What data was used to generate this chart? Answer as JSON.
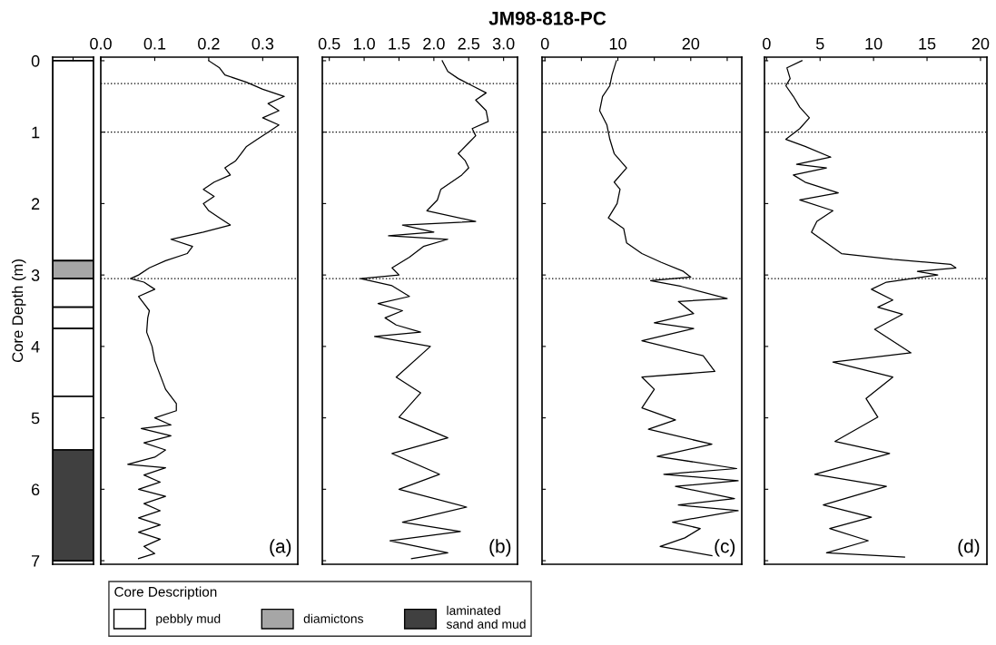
{
  "chart_data": [
    {
      "type": "bar",
      "stacked": true,
      "ylabel": "Core Depth (m)",
      "categories": [
        null
      ],
      "ylim": [
        7.05,
        -0.05
      ],
      "yticks": [
        0,
        1,
        2,
        3,
        4,
        5,
        6,
        7
      ],
      "tick_labels": "y",
      "legend": "bottom",
      "legend_title": "Core Description",
      "series": [
        {
          "name": "pebbly mud",
          "color": "#ffffff",
          "values": [
            2.8
          ]
        },
        {
          "name": "diamictons",
          "color": "#a6a6a6",
          "values": [
            0.25
          ]
        },
        {
          "color": "#ffffff",
          "values": [
            0.4
          ]
        },
        {
          "color": "#ffffff",
          "values": [
            0.3
          ]
        },
        {
          "color": "#ffffff",
          "values": [
            0.95
          ]
        },
        {
          "color": "#ffffff",
          "values": [
            0.75
          ]
        },
        {
          "name": "laminated\nsand and mud",
          "color": "#404040",
          "values": [
            1.55
          ]
        }
      ]
    },
    {
      "type": "line",
      "orientation": "horizontal",
      "annotations": [
        "(a)"
      ],
      "xlim": [
        0,
        0.365
      ],
      "xticks": [
        {
          "value": 0,
          "label": "0.0"
        },
        0.1,
        0.2,
        0.3
      ],
      "ylim": [
        7.05,
        -0.05
      ],
      "yticks": [
        0,
        1,
        2,
        3,
        4,
        5,
        6,
        7
      ],
      "tick_labels": "x",
      "ref_lines": [
        {
          "axis": "y",
          "value": 0.32,
          "color": "#000000",
          "line_style": "dotted"
        },
        {
          "axis": "y",
          "value": 1.0,
          "color": "#000000",
          "line_style": "dotted"
        },
        {
          "axis": "y",
          "value": 3.05,
          "color": "#000000",
          "line_style": "dotted"
        }
      ],
      "series": [
        {
          "color": "#000000",
          "x": [
            0,
            0.1,
            0.2,
            0.3,
            0.4,
            0.5,
            0.6,
            0.7,
            0.8,
            0.9,
            1.0,
            1.1,
            1.2,
            1.3,
            1.4,
            1.5,
            1.6,
            1.7,
            1.8,
            1.9,
            2.0,
            2.1,
            2.2,
            2.3,
            2.4,
            2.5,
            2.6,
            2.7,
            2.8,
            2.9,
            3.0,
            3.05,
            3.1,
            3.2,
            3.3,
            3.4,
            3.5,
            3.6,
            3.8,
            4.0,
            4.2,
            4.4,
            4.6,
            4.8,
            4.9,
            5.0,
            5.1,
            5.15,
            5.25,
            5.35,
            5.45,
            5.55,
            5.65,
            5.7,
            5.8,
            5.9,
            6.0,
            6.1,
            6.2,
            6.3,
            6.4,
            6.5,
            6.6,
            6.7,
            6.8,
            6.9,
            6.97
          ],
          "values": [
            0.2,
            0.22,
            0.23,
            0.27,
            0.3,
            0.34,
            0.31,
            0.33,
            0.3,
            0.33,
            0.31,
            0.29,
            0.27,
            0.26,
            0.25,
            0.23,
            0.24,
            0.21,
            0.19,
            0.21,
            0.19,
            0.2,
            0.22,
            0.24,
            0.19,
            0.13,
            0.17,
            0.16,
            0.12,
            0.09,
            0.07,
            0.055,
            0.08,
            0.1,
            0.07,
            0.08,
            0.09,
            0.087,
            0.085,
            0.095,
            0.1,
            0.11,
            0.12,
            0.14,
            0.14,
            0.1,
            0.13,
            0.075,
            0.13,
            0.08,
            0.12,
            0.1,
            0.05,
            0.12,
            0.08,
            0.11,
            0.07,
            0.12,
            0.08,
            0.11,
            0.07,
            0.11,
            0.07,
            0.11,
            0.08,
            0.1,
            0.07
          ]
        }
      ]
    },
    {
      "type": "line",
      "orientation": "horizontal",
      "annotations": [
        "(b)"
      ],
      "xlim": [
        0.4,
        3.2
      ],
      "xticks": [
        0.5,
        {
          "value": 1,
          "label": "1.0"
        },
        1.5,
        {
          "value": 2,
          "label": "2.0"
        },
        2.5,
        {
          "value": 3,
          "label": "3.0"
        }
      ],
      "ylim": [
        7.05,
        -0.05
      ],
      "yticks": [
        0,
        1,
        2,
        3,
        4,
        5,
        6,
        7
      ],
      "tick_labels": "x",
      "ref_lines": [
        {
          "axis": "y",
          "value": 0.32,
          "color": "#000000",
          "line_style": "dotted"
        },
        {
          "axis": "y",
          "value": 1.0,
          "color": "#000000",
          "line_style": "dotted"
        },
        {
          "axis": "y",
          "value": 3.05,
          "color": "#000000",
          "line_style": "dotted"
        }
      ],
      "series": [
        {
          "color": "#000000",
          "x": [
            0,
            0.15,
            0.25,
            0.35,
            0.45,
            0.55,
            0.7,
            0.85,
            0.95,
            1.05,
            1.15,
            1.3,
            1.4,
            1.5,
            1.6,
            1.8,
            1.95,
            2.1,
            2.25,
            2.3,
            2.4,
            2.45,
            2.5,
            2.6,
            2.75,
            2.9,
            3.0,
            3.05,
            3.15,
            3.3,
            3.4,
            3.5,
            3.6,
            3.7,
            3.8,
            3.86,
            4.0,
            4.43,
            4.65,
            4.99,
            5.28,
            5.5,
            5.79,
            6.0,
            6.25,
            6.46,
            6.59,
            6.72,
            6.89,
            6.97
          ],
          "values": [
            2.12,
            2.2,
            2.35,
            2.55,
            2.75,
            2.6,
            2.75,
            2.78,
            2.55,
            2.6,
            2.5,
            2.35,
            2.45,
            2.5,
            2.4,
            2.1,
            2.05,
            1.9,
            2.6,
            1.55,
            2.0,
            1.35,
            2.2,
            1.85,
            1.65,
            1.4,
            1.5,
            0.95,
            1.4,
            1.65,
            1.2,
            1.55,
            1.3,
            1.46,
            1.81,
            1.15,
            1.95,
            1.46,
            1.81,
            1.5,
            2.2,
            1.4,
            2.08,
            1.5,
            2.47,
            1.55,
            2.38,
            1.37,
            2.2,
            1.68
          ]
        }
      ]
    },
    {
      "type": "line",
      "orientation": "horizontal",
      "title": "JM98-818-PC",
      "annotations": [
        "(c)"
      ],
      "xlim": [
        -0.4,
        27
      ],
      "xticks": [
        0,
        {
          "value": 5,
          "label": null
        },
        10,
        {
          "value": 15,
          "label": null
        },
        20,
        {
          "value": 25,
          "label": null
        }
      ],
      "ylim": [
        7.05,
        -0.05
      ],
      "yticks": [
        0,
        1,
        2,
        3,
        4,
        5,
        6,
        7
      ],
      "tick_labels": "x",
      "ref_lines": [
        {
          "axis": "y",
          "value": 0.32,
          "color": "#000000",
          "line_style": "dotted"
        },
        {
          "axis": "y",
          "value": 1.0,
          "color": "#000000",
          "line_style": "dotted"
        },
        {
          "axis": "y",
          "value": 3.05,
          "color": "#000000",
          "line_style": "dotted"
        }
      ],
      "series": [
        {
          "color": "#000000",
          "x": [
            0,
            0.2,
            0.35,
            0.5,
            0.7,
            0.9,
            1.1,
            1.3,
            1.5,
            1.7,
            1.8,
            2.0,
            2.2,
            2.35,
            2.55,
            2.7,
            2.82,
            2.95,
            3.03,
            3.08,
            3.16,
            3.33,
            3.37,
            3.54,
            3.67,
            3.75,
            3.92,
            4.13,
            4.35,
            4.43,
            4.6,
            4.86,
            5.03,
            5.16,
            5.37,
            5.54,
            5.71,
            5.79,
            5.88,
            5.96,
            6.13,
            6.22,
            6.3,
            6.46,
            6.55,
            6.68,
            6.8,
            6.93
          ],
          "values": [
            9.8,
            9.2,
            8.9,
            7.9,
            7.5,
            8.5,
            8.9,
            9.5,
            11.2,
            9.5,
            10.3,
            9.9,
            8.7,
            10.8,
            11.2,
            13.3,
            15.9,
            19,
            20,
            14.5,
            18.7,
            25,
            18.3,
            20.4,
            15,
            20.4,
            13.3,
            21.7,
            23.3,
            13.3,
            15,
            13.3,
            17.9,
            14.2,
            22.9,
            15.4,
            26.3,
            16.3,
            26.5,
            17.9,
            26,
            18.3,
            26.5,
            17.5,
            21.3,
            19.2,
            15.8,
            22.9
          ]
        }
      ]
    },
    {
      "type": "line",
      "orientation": "horizontal",
      "annotations": [
        "(d)"
      ],
      "xlim": [
        -0.2,
        20.6
      ],
      "xticks": [
        0,
        5,
        10,
        15,
        20
      ],
      "ylim": [
        7.05,
        -0.05
      ],
      "yticks": [
        0,
        1,
        2,
        3,
        4,
        5,
        6,
        7
      ],
      "tick_labels": "x",
      "ref_lines": [
        {
          "axis": "y",
          "value": 0.32,
          "color": "#000000",
          "line_style": "dotted"
        },
        {
          "axis": "y",
          "value": 1.0,
          "color": "#000000",
          "line_style": "dotted"
        },
        {
          "axis": "y",
          "value": 3.05,
          "color": "#000000",
          "line_style": "dotted"
        }
      ],
      "series": [
        {
          "color": "#000000",
          "x": [
            0,
            0.1,
            0.25,
            0.35,
            0.5,
            0.65,
            0.8,
            0.95,
            1.1,
            1.2,
            1.35,
            1.45,
            1.5,
            1.6,
            1.7,
            1.85,
            1.95,
            2.1,
            2.25,
            2.4,
            2.55,
            2.7,
            2.78,
            2.85,
            2.9,
            2.95,
            3.0,
            3.1,
            3.2,
            3.35,
            3.45,
            3.55,
            3.76,
            4.09,
            4.22,
            4.43,
            4.73,
            4.99,
            5.33,
            5.5,
            5.79,
            5.96,
            6.22,
            6.39,
            6.55,
            6.72,
            6.89,
            6.95
          ],
          "values": [
            3.3,
            1.9,
            2.2,
            1.8,
            2.5,
            3.1,
            4.0,
            3.1,
            1.8,
            3.6,
            6.0,
            2.8,
            5.6,
            2.5,
            3.6,
            6.7,
            3.1,
            6.2,
            4.7,
            4.2,
            5.6,
            7.0,
            11.8,
            17.2,
            17.7,
            14.1,
            16.0,
            11.2,
            9.8,
            11.8,
            10.4,
            12.7,
            10.1,
            13.5,
            6.2,
            11.8,
            9.3,
            10.4,
            6.4,
            11.5,
            4.5,
            11.2,
            5.3,
            9.8,
            5.9,
            9.5,
            5.6,
            12.9
          ]
        }
      ]
    }
  ]
}
